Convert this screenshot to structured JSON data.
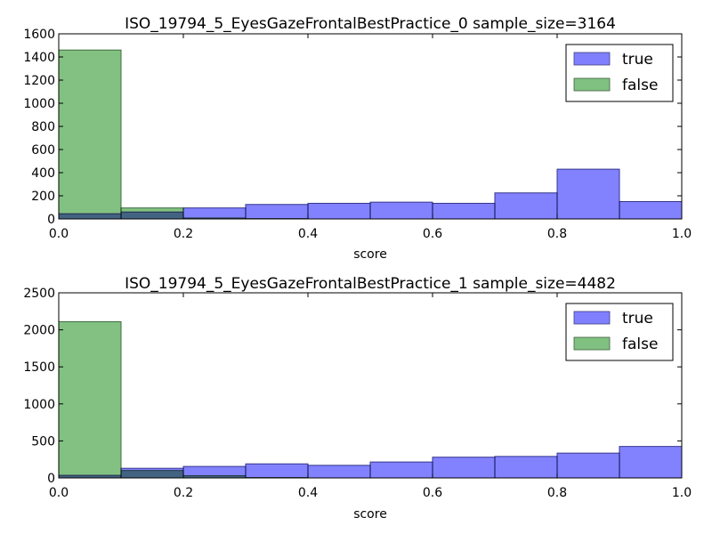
{
  "chart_data": [
    {
      "type": "bar",
      "title": "ISO_19794_5_EyesGazeFrontalBestPractice_0 sample_size=3164",
      "xlabel": "score",
      "ylabel": "",
      "xlim": [
        0.0,
        1.0
      ],
      "ylim": [
        0,
        1600
      ],
      "xticks": [
        "0.0",
        "0.2",
        "0.4",
        "0.6",
        "0.8",
        "1.0"
      ],
      "yticks": [
        "0",
        "200",
        "400",
        "600",
        "800",
        "1000",
        "1200",
        "1400",
        "1600"
      ],
      "bin_edges": [
        0.0,
        0.1,
        0.2,
        0.3,
        0.4,
        0.5,
        0.6,
        0.7,
        0.8,
        0.9,
        1.0
      ],
      "grid": false,
      "legend": "top-right",
      "series": [
        {
          "name": "true",
          "color": "#8080ff",
          "values": [
            45,
            60,
            95,
            125,
            135,
            145,
            135,
            225,
            430,
            150
          ]
        },
        {
          "name": "false",
          "color": "#80c080",
          "values": [
            1460,
            95,
            8,
            3,
            0,
            0,
            0,
            0,
            0,
            0
          ]
        }
      ]
    },
    {
      "type": "bar",
      "title": "ISO_19794_5_EyesGazeFrontalBestPractice_1 sample_size=4482",
      "xlabel": "score",
      "ylabel": "",
      "xlim": [
        0.0,
        1.0
      ],
      "ylim": [
        0,
        2500
      ],
      "xticks": [
        "0.0",
        "0.2",
        "0.4",
        "0.6",
        "0.8",
        "1.0"
      ],
      "yticks": [
        "0",
        "500",
        "1000",
        "1500",
        "2000",
        "2500"
      ],
      "bin_edges": [
        0.0,
        0.1,
        0.2,
        0.3,
        0.4,
        0.5,
        0.6,
        0.7,
        0.8,
        0.9,
        1.0
      ],
      "grid": false,
      "legend": "top-right",
      "series": [
        {
          "name": "true",
          "color": "#8080ff",
          "values": [
            35,
            130,
            155,
            190,
            170,
            215,
            280,
            290,
            335,
            425
          ]
        },
        {
          "name": "false",
          "color": "#80c080",
          "values": [
            2110,
            100,
            30,
            5,
            0,
            0,
            0,
            0,
            0,
            0
          ]
        }
      ]
    }
  ]
}
